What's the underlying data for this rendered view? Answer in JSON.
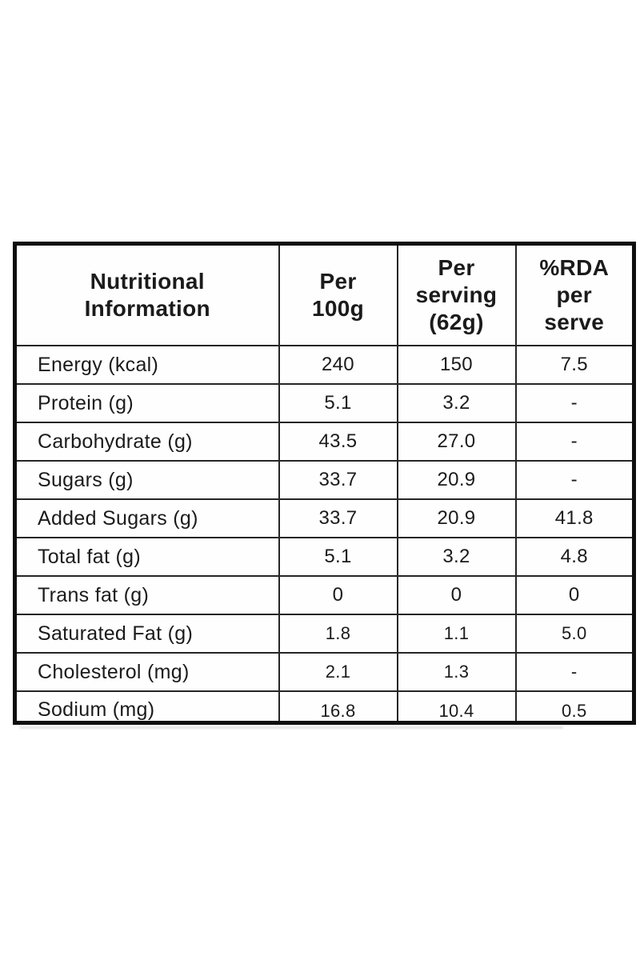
{
  "table": {
    "columns": {
      "nutrient": "Nutritional\nInformation",
      "per_100g": "Per\n100g",
      "per_serving": "Per\nserving\n(62g)",
      "rda": "%RDA\nper\nserve"
    },
    "rows": [
      {
        "label": "Energy (kcal)",
        "per_100g": "240",
        "per_serving": "150",
        "rda": "7.5"
      },
      {
        "label": "Protein (g)",
        "per_100g": "5.1",
        "per_serving": "3.2",
        "rda": "-"
      },
      {
        "label": "Carbohydrate (g)",
        "per_100g": "43.5",
        "per_serving": "27.0",
        "rda": "-"
      },
      {
        "label": "Sugars (g)",
        "per_100g": "33.7",
        "per_serving": "20.9",
        "rda": "-"
      },
      {
        "label": "Added Sugars (g)",
        "per_100g": "33.7",
        "per_serving": "20.9",
        "rda": "41.8"
      },
      {
        "label": "Total fat (g)",
        "per_100g": "5.1",
        "per_serving": "3.2",
        "rda": "4.8"
      },
      {
        "label": "Trans fat (g)",
        "per_100g": "0",
        "per_serving": "0",
        "rda": "0"
      },
      {
        "label": "Saturated Fat (g)",
        "per_100g": "1.8",
        "per_serving": "1.1",
        "rda": "5.0"
      },
      {
        "label": "Cholesterol (mg)",
        "per_100g": "2.1",
        "per_serving": "1.3",
        "rda": "-"
      },
      {
        "label": "Sodium (mg)",
        "per_100g": "16.8",
        "per_serving": "10.4",
        "rda": "0.5"
      }
    ],
    "colors": {
      "border_outer": "#0e0e0e",
      "border_inner": "#262626",
      "text": "#1b1b1b",
      "background": "#ffffff"
    }
  }
}
